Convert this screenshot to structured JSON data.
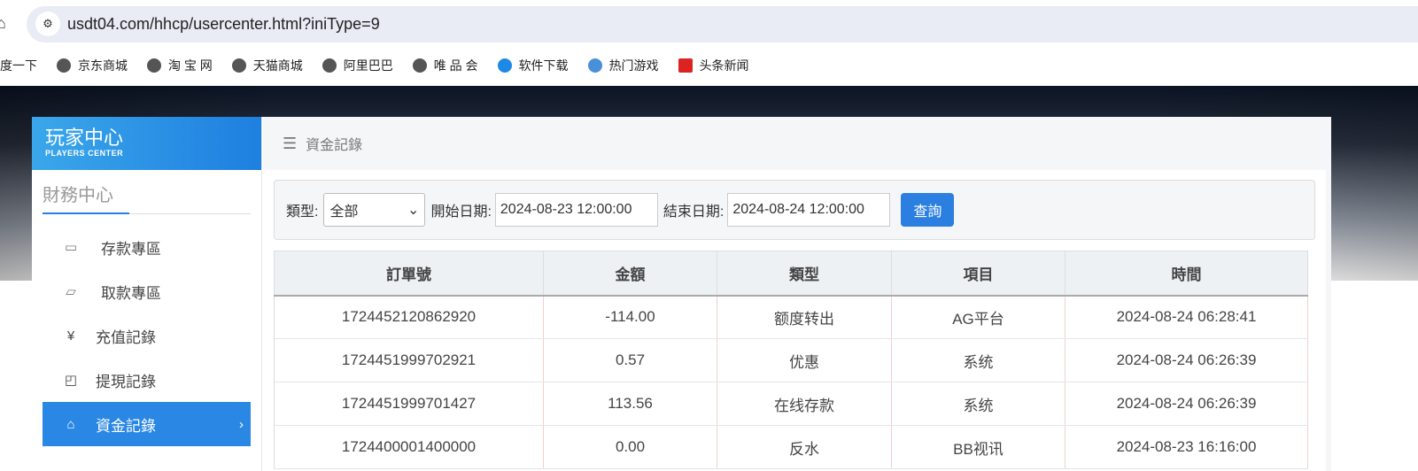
{
  "browser": {
    "url": "usdt04.com/hhcp/usercenter.html?iniType=9",
    "bookmarks": [
      "度一下",
      "京东商城",
      "淘 宝 网",
      "天猫商城",
      "阿里巴巴",
      "唯 品 会",
      "软件下载",
      "热门游戏",
      "头条新闻"
    ]
  },
  "sidebar": {
    "logo_title": "玩家中心",
    "logo_subtitle": "PLAYERS CENTER",
    "section": "財務中心",
    "items": [
      {
        "label": "存款專區",
        "icon": "card-icon"
      },
      {
        "label": "取款專區",
        "icon": "hand-money-icon"
      },
      {
        "label": "充值記錄",
        "icon": "money-bag-icon"
      },
      {
        "label": "提現記錄",
        "icon": "wallet-icon"
      },
      {
        "label": "資金記錄",
        "icon": "cash-icon",
        "active": true
      }
    ]
  },
  "main": {
    "breadcrumb": "資金記錄",
    "filter": {
      "type_label": "類型:",
      "type_value": "全部",
      "start_label": "開始日期:",
      "start_value": "2024-08-23 12:00:00",
      "end_label": "結束日期:",
      "end_value": "2024-08-24 12:00:00",
      "query_label": "查詢"
    },
    "table": {
      "headers": [
        "訂單號",
        "金額",
        "類型",
        "項目",
        "時間"
      ],
      "rows": [
        [
          "1724452120862920",
          "-114.00",
          "额度转出",
          "AG平台",
          "2024-08-24 06:28:41"
        ],
        [
          "1724451999702921",
          "0.57",
          "优惠",
          "系统",
          "2024-08-24 06:26:39"
        ],
        [
          "1724451999701427",
          "113.56",
          "在线存款",
          "系统",
          "2024-08-24 06:26:39"
        ],
        [
          "1724400001400000",
          "0.00",
          "反水",
          "BB视讯",
          "2024-08-23 16:16:00"
        ]
      ]
    }
  },
  "colors": {
    "accent": "#2a87e3"
  }
}
